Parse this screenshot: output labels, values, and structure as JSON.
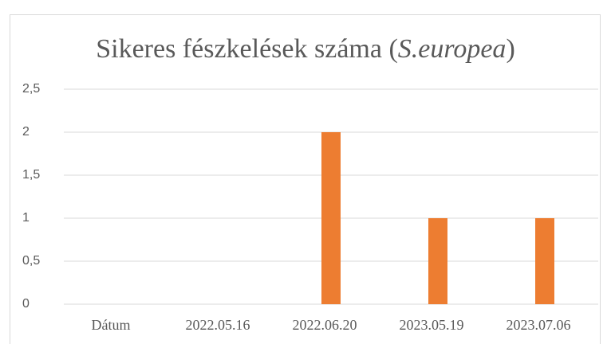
{
  "chart_data": {
    "type": "bar",
    "title": [
      "Sikeres fészkelések száma (",
      "S.europea",
      ")"
    ],
    "title_italic": [
      false,
      true,
      false
    ],
    "categories": [
      "Dátum",
      "2022.05.16",
      "2022.06.20",
      "2023.05.19",
      "2023.07.06"
    ],
    "values": [
      null,
      0,
      2,
      1,
      1
    ],
    "color": "#ed7d31",
    "ylim": [
      0,
      2.5
    ],
    "yticks": [
      0,
      {
        "value": 0.5,
        "label": "0,5"
      },
      1,
      {
        "value": 1.5,
        "label": "1,5"
      },
      2,
      {
        "value": 2.5,
        "label": "2,5"
      }
    ],
    "grid": true
  }
}
